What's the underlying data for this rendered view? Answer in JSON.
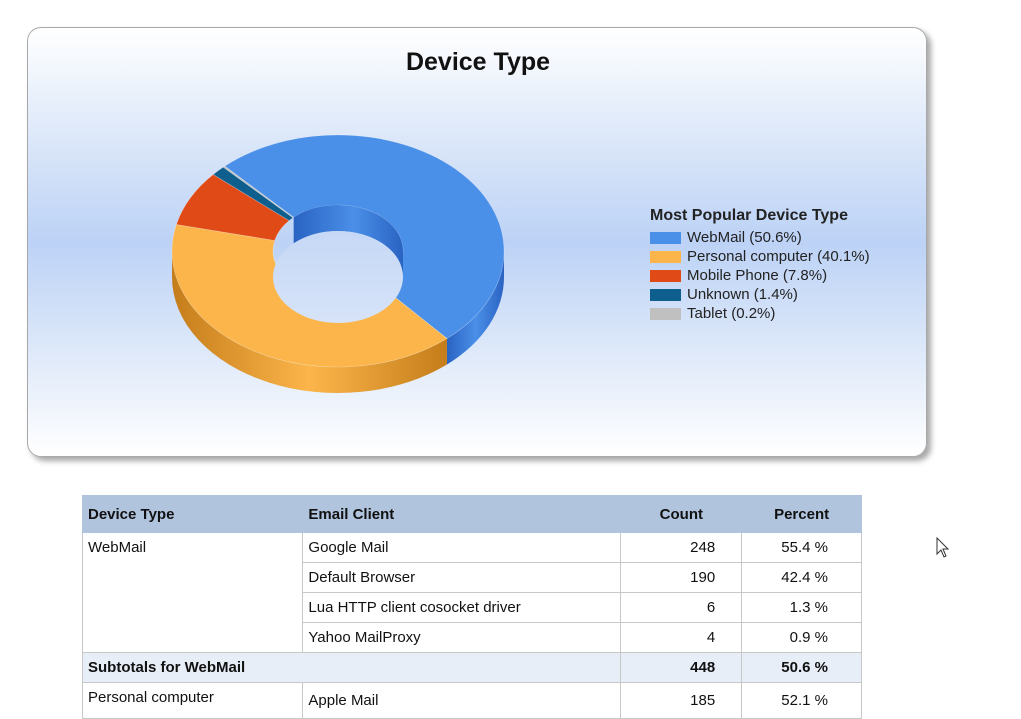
{
  "chart_data": {
    "type": "pie",
    "title": "Device Type",
    "legend_title": "Most Popular Device Type",
    "legend_position": "right",
    "slices": [
      {
        "label": "WebMail",
        "value": 50.6,
        "legend": "WebMail (50.6%)",
        "color": "#4a8fe8",
        "dark": "#2a63c2"
      },
      {
        "label": "Personal computer",
        "value": 40.1,
        "legend": "Personal computer (40.1%)",
        "color": "#fcb54a",
        "dark": "#c47d1a"
      },
      {
        "label": "Mobile Phone",
        "value": 7.8,
        "legend": "Mobile Phone (7.8%)",
        "color": "#e04a17",
        "dark": "#8a2a08"
      },
      {
        "label": "Unknown",
        "value": 1.4,
        "legend": "Unknown (1.4%)",
        "color": "#0f5f8e",
        "dark": "#083a59"
      },
      {
        "label": "Tablet",
        "value": 0.2,
        "legend": "Tablet (0.2%)",
        "color": "#c0c0c0",
        "dark": "#808080"
      }
    ]
  },
  "table": {
    "headers": [
      "Device Type",
      "Email Client",
      "Count",
      "Percent"
    ],
    "group1": {
      "name": "WebMail",
      "rows": [
        {
          "client": "Google Mail",
          "count": "248",
          "percent": "55.4 %"
        },
        {
          "client": "Default Browser",
          "count": "190",
          "percent": "42.4 %"
        },
        {
          "client": "Lua HTTP client cosocket driver",
          "count": "6",
          "percent": "1.3 %"
        },
        {
          "client": "Yahoo MailProxy",
          "count": "4",
          "percent": "0.9 %"
        }
      ],
      "subtotal_label": "Subtotals for WebMail",
      "subtotal_count": "448",
      "subtotal_percent": "50.6 %"
    },
    "group2": {
      "name": "Personal computer",
      "rows": [
        {
          "client": "Apple Mail",
          "count": "185",
          "percent": "52.1 %"
        }
      ]
    }
  }
}
